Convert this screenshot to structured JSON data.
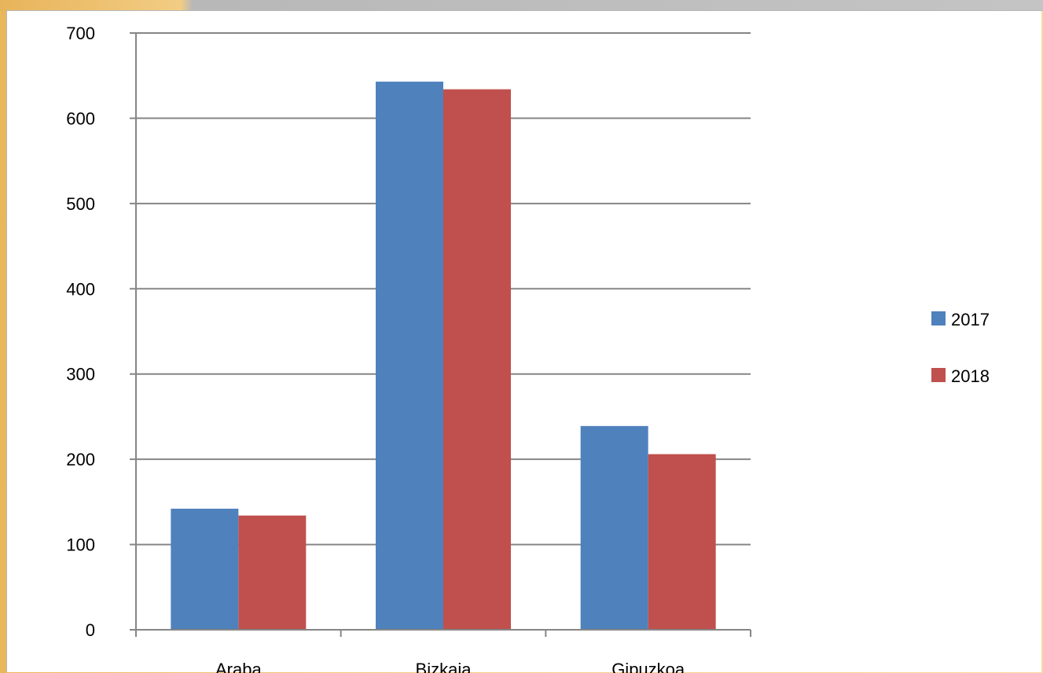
{
  "chart_data": {
    "type": "bar",
    "categories": [
      "Araba",
      "Bizkaia",
      "Gipuzkoa"
    ],
    "series": [
      {
        "name": "2017",
        "values": [
          142,
          643,
          239
        ],
        "color": "#4f81bd"
      },
      {
        "name": "2018",
        "values": [
          134,
          634,
          206
        ],
        "color": "#c0504d"
      }
    ],
    "y_ticks": [
      0,
      100,
      200,
      300,
      400,
      500,
      600,
      700
    ],
    "ylim": [
      0,
      700
    ],
    "grid": true,
    "legend_position": "right",
    "title": "",
    "xlabel": "",
    "ylabel": ""
  }
}
